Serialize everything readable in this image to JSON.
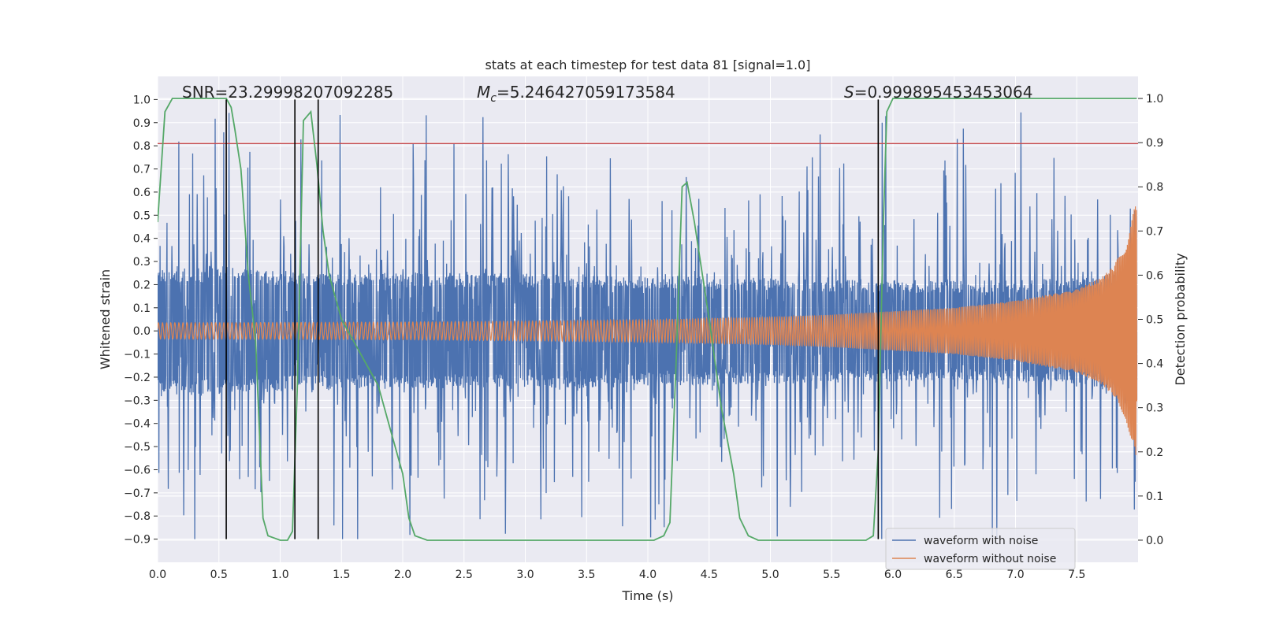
{
  "chart_data": {
    "type": "line",
    "title": "stats at each timestep for test data 81 [signal=1.0]",
    "xlabel": "Time (s)",
    "ylabel": "Whitened strain",
    "y2label": "Detection probability",
    "xlim": [
      0.0,
      8.0
    ],
    "ylim": [
      -1.0,
      1.1
    ],
    "y2lim": [
      -0.05,
      1.05
    ],
    "x_ticks": [
      0.0,
      0.5,
      1.0,
      1.5,
      2.0,
      2.5,
      3.0,
      3.5,
      4.0,
      4.5,
      5.0,
      5.5,
      6.0,
      6.5,
      7.0,
      7.5
    ],
    "x_tick_labels": [
      "0.0",
      "0.5",
      "1.0",
      "1.5",
      "2.0",
      "2.5",
      "3.0",
      "3.5",
      "4.0",
      "4.5",
      "5.0",
      "5.5",
      "6.0",
      "6.5",
      "7.0",
      "7.5"
    ],
    "y_ticks": [
      -0.9,
      -0.8,
      -0.7,
      -0.6,
      -0.5,
      -0.4,
      -0.3,
      -0.2,
      -0.1,
      0.0,
      0.1,
      0.2,
      0.3,
      0.4,
      0.5,
      0.6,
      0.7,
      0.8,
      0.9,
      1.0
    ],
    "y_tick_labels": [
      "−0.9",
      "−0.8",
      "−0.7",
      "−0.6",
      "−0.5",
      "−0.4",
      "−0.3",
      "−0.2",
      "−0.1",
      "0.0",
      "0.1",
      "0.2",
      "0.3",
      "0.4",
      "0.5",
      "0.6",
      "0.7",
      "0.8",
      "0.9",
      "1.0"
    ],
    "y2_ticks": [
      0.0,
      0.1,
      0.2,
      0.3,
      0.4,
      0.5,
      0.6,
      0.7,
      0.8,
      0.9,
      1.0
    ],
    "y2_tick_labels": [
      "0.0",
      "0.1",
      "0.2",
      "0.3",
      "0.4",
      "0.5",
      "0.6",
      "0.7",
      "0.8",
      "0.9",
      "1.0"
    ],
    "grid": true,
    "legend_position": "bottom-right",
    "annotations": {
      "snr": "SNR=23.29998207092285",
      "mc_symbol": "M",
      "mc_subscript": "c",
      "mc_value": "=5.246427059173584",
      "s_symbol": "S",
      "s_value": "=0.999895453453064"
    },
    "threshold": {
      "value": 0.81,
      "axis": "left",
      "color": "#c44e52"
    },
    "vlines": [
      0.56,
      1.12,
      1.31,
      5.88
    ],
    "vline_range": [
      -0.9,
      1.0
    ],
    "series": [
      {
        "name": "waveform with noise",
        "color": "#4c72b0",
        "axis": "left",
        "description_kind": "noise",
        "core_band": [
          [
            0.0,
            0.28
          ],
          [
            0.5,
            0.28
          ],
          [
            1.0,
            0.26
          ],
          [
            2.0,
            0.25
          ],
          [
            3.0,
            0.25
          ],
          [
            4.0,
            0.24
          ],
          [
            5.0,
            0.23
          ],
          [
            6.0,
            0.22
          ],
          [
            7.0,
            0.22
          ],
          [
            7.5,
            0.23
          ],
          [
            7.9,
            0.26
          ]
        ],
        "max_extent": 1.0,
        "min_extent": -0.9
      },
      {
        "name": "waveform without noise",
        "color": "#dd8452",
        "axis": "left",
        "description_kind": "chirp",
        "envelope": [
          [
            0.0,
            0.035
          ],
          [
            1.0,
            0.036
          ],
          [
            2.0,
            0.038
          ],
          [
            3.0,
            0.042
          ],
          [
            4.0,
            0.048
          ],
          [
            5.0,
            0.06
          ],
          [
            5.5,
            0.07
          ],
          [
            6.0,
            0.085
          ],
          [
            6.5,
            0.1
          ],
          [
            7.0,
            0.13
          ],
          [
            7.5,
            0.18
          ],
          [
            7.7,
            0.23
          ],
          [
            7.8,
            0.28
          ],
          [
            7.9,
            0.38
          ],
          [
            7.98,
            0.55
          ]
        ],
        "freq_start": 30,
        "freq_end": 110
      },
      {
        "name": "detection probability",
        "color": "#55a868",
        "axis": "right",
        "x": [
          0.0,
          0.06,
          0.12,
          0.2,
          0.3,
          0.4,
          0.5,
          0.56,
          0.6,
          0.63,
          0.68,
          0.74,
          0.8,
          0.86,
          0.9,
          1.0,
          1.06,
          1.1,
          1.14,
          1.19,
          1.25,
          1.3,
          1.35,
          1.4,
          1.5,
          1.6,
          1.7,
          1.8,
          1.9,
          2.0,
          2.05,
          2.1,
          2.2,
          2.5,
          3.0,
          3.5,
          3.9,
          4.05,
          4.13,
          4.18,
          4.23,
          4.28,
          4.32,
          4.38,
          4.5,
          4.6,
          4.7,
          4.75,
          4.82,
          4.9,
          5.0,
          5.5,
          5.78,
          5.84,
          5.88,
          5.92,
          5.95,
          6.0,
          6.5,
          7.0,
          7.5,
          7.99
        ],
        "y": [
          0.72,
          0.97,
          1.0,
          1.0,
          1.0,
          1.0,
          1.0,
          1.0,
          0.98,
          0.93,
          0.84,
          0.6,
          0.45,
          0.05,
          0.01,
          0.0,
          0.0,
          0.02,
          0.35,
          0.95,
          0.97,
          0.85,
          0.7,
          0.6,
          0.5,
          0.45,
          0.4,
          0.35,
          0.25,
          0.15,
          0.05,
          0.01,
          0.0,
          0.0,
          0.0,
          0.0,
          0.0,
          0.0,
          0.01,
          0.04,
          0.4,
          0.8,
          0.81,
          0.72,
          0.5,
          0.3,
          0.15,
          0.05,
          0.01,
          0.0,
          0.0,
          0.0,
          0.0,
          0.01,
          0.2,
          0.7,
          0.97,
          1.0,
          1.0,
          1.0,
          1.0,
          1.0
        ]
      }
    ]
  }
}
